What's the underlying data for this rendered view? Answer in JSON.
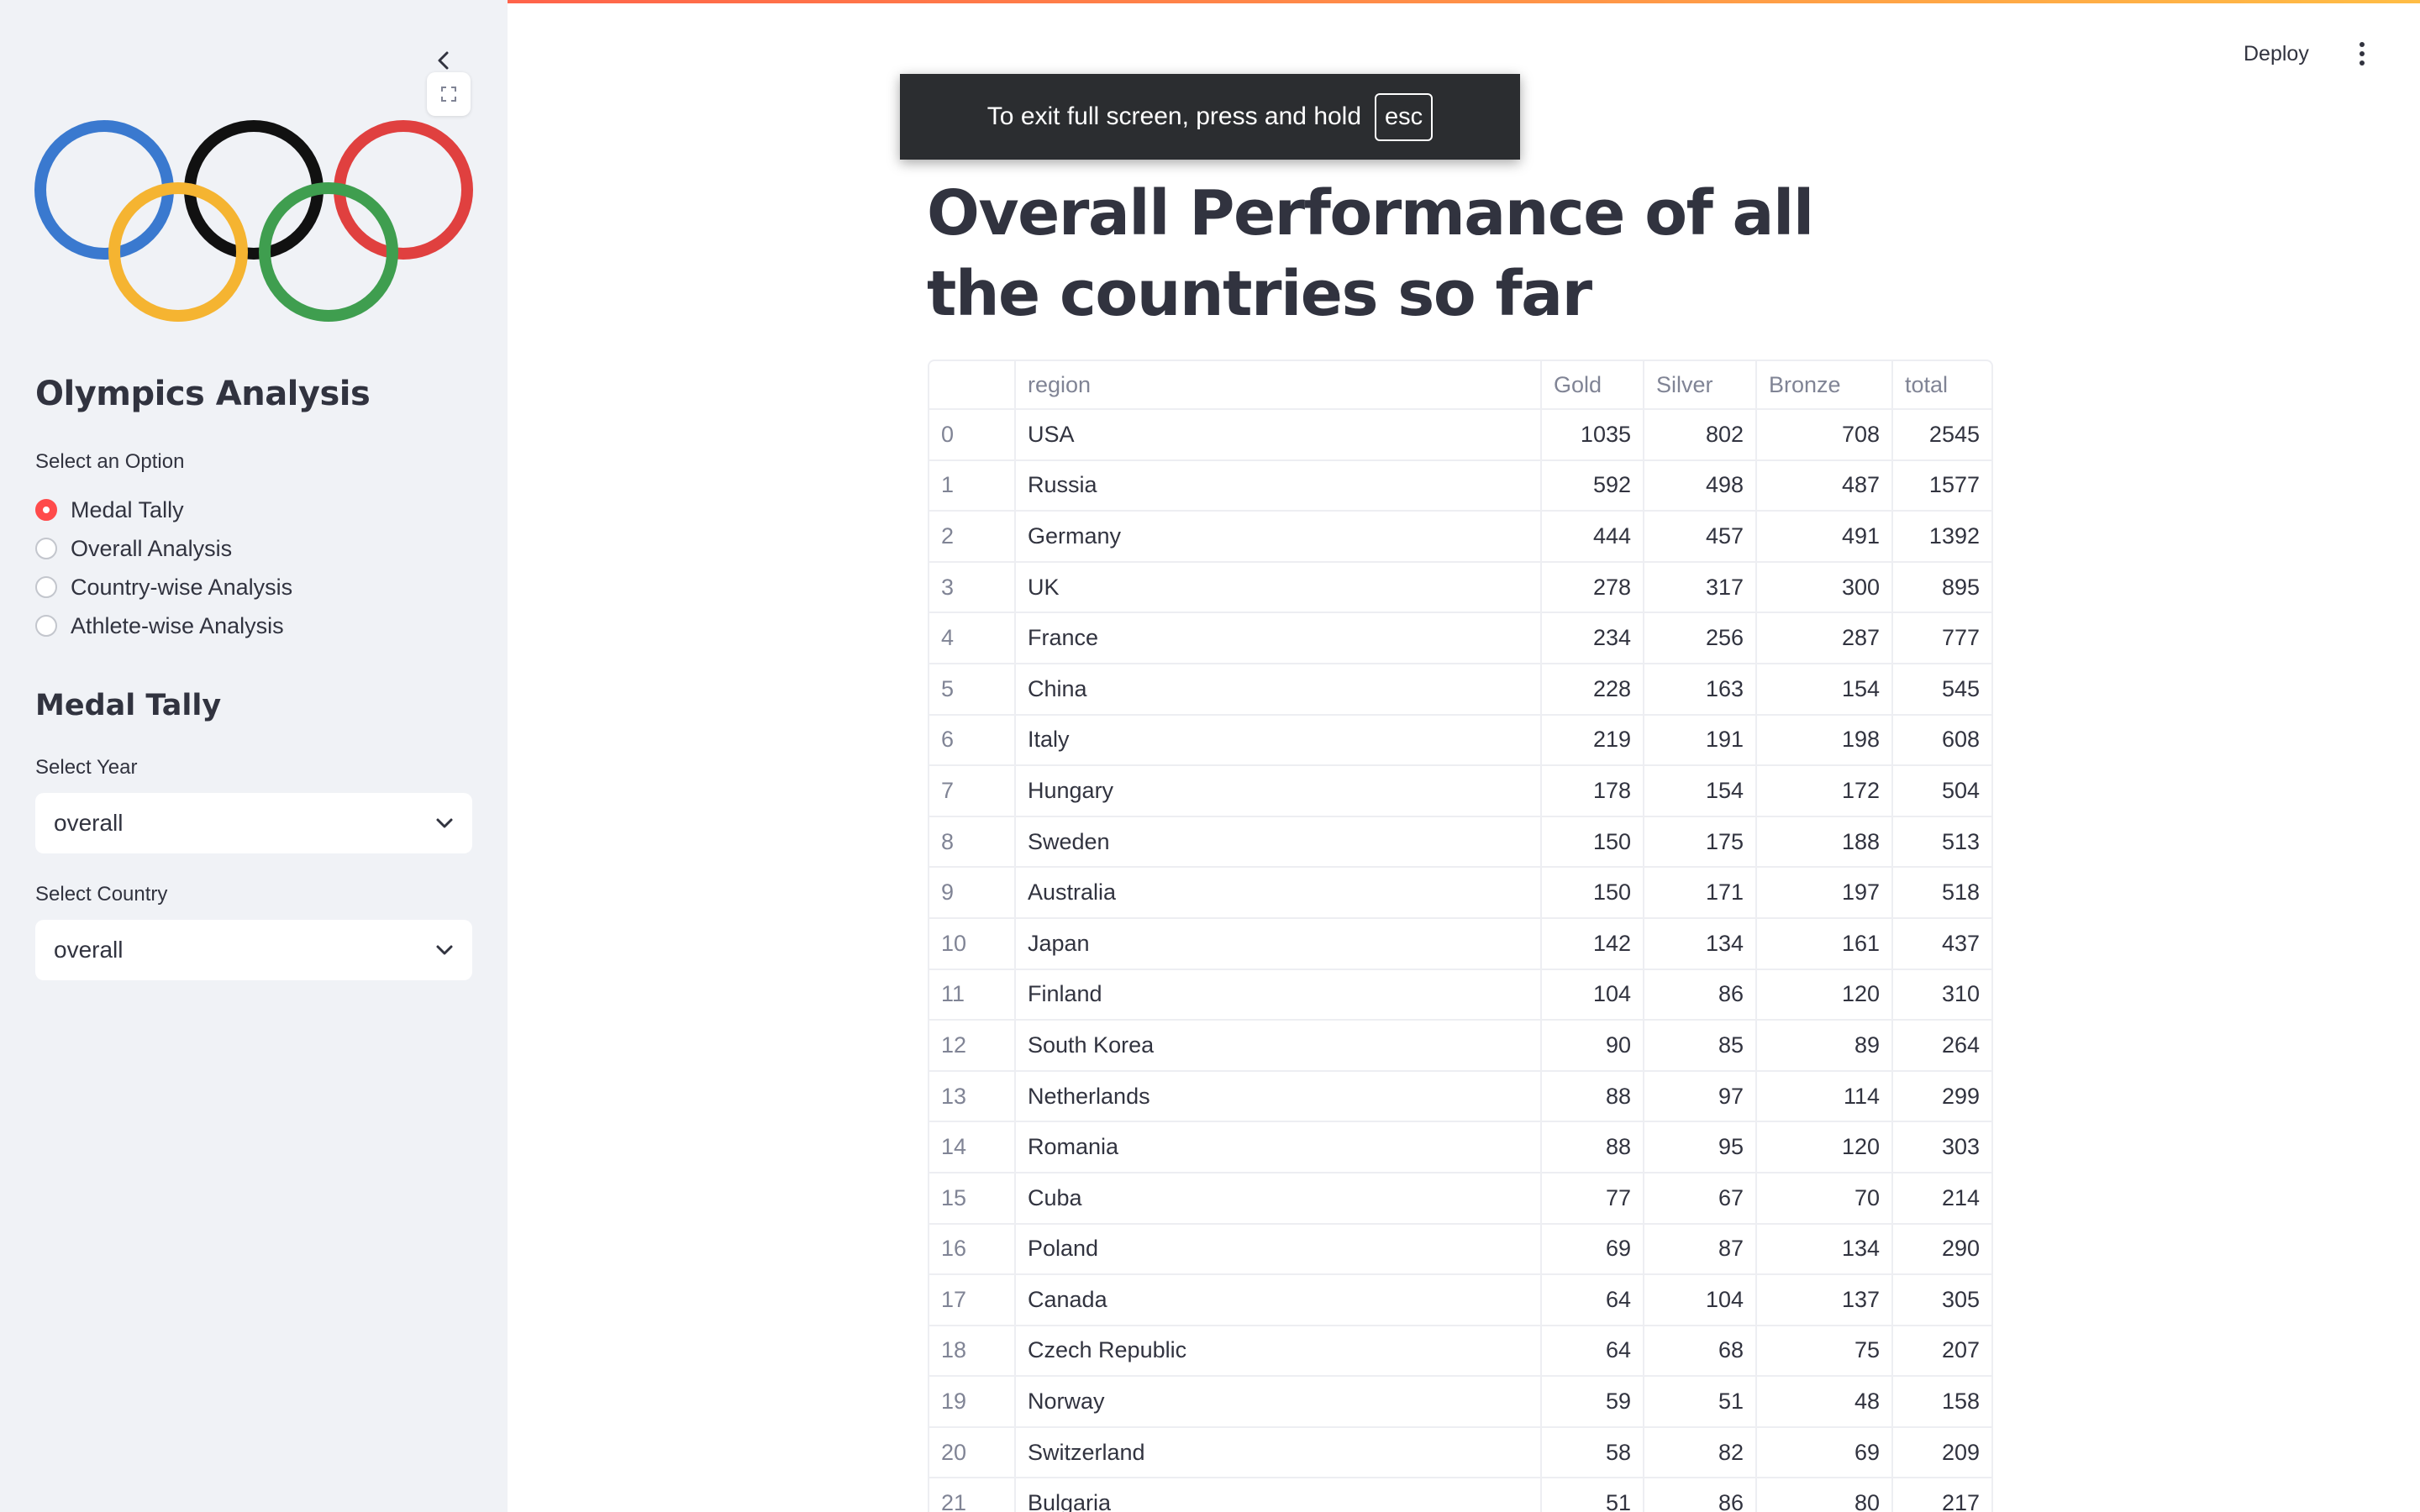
{
  "sidebar": {
    "app_title": "Olympics Analysis",
    "option_label": "Select an Option",
    "options": [
      {
        "label": "Medal Tally",
        "selected": true
      },
      {
        "label": "Overall Analysis",
        "selected": false
      },
      {
        "label": "Country-wise Analysis",
        "selected": false
      },
      {
        "label": "Athlete-wise Analysis",
        "selected": false
      }
    ],
    "section_title": "Medal Tally",
    "year_label": "Select Year",
    "year_value": "overall",
    "country_label": "Select Country",
    "country_value": "overall",
    "ring_colors": [
      "#3a79cf",
      "#111111",
      "#e0403f",
      "#f5b431",
      "#3f9e4f"
    ]
  },
  "toolbar": {
    "deploy_label": "Deploy"
  },
  "fullscreen_toast": {
    "message": "To exit full screen, press and hold",
    "key": "esc"
  },
  "main": {
    "title": "Overall Performance of all the countries so far",
    "table": {
      "columns": [
        "",
        "region",
        "Gold",
        "Silver",
        "Bronze",
        "total"
      ],
      "rows": [
        [
          "0",
          "USA",
          "1035",
          "802",
          "708",
          "2545"
        ],
        [
          "1",
          "Russia",
          "592",
          "498",
          "487",
          "1577"
        ],
        [
          "2",
          "Germany",
          "444",
          "457",
          "491",
          "1392"
        ],
        [
          "3",
          "UK",
          "278",
          "317",
          "300",
          "895"
        ],
        [
          "4",
          "France",
          "234",
          "256",
          "287",
          "777"
        ],
        [
          "5",
          "China",
          "228",
          "163",
          "154",
          "545"
        ],
        [
          "6",
          "Italy",
          "219",
          "191",
          "198",
          "608"
        ],
        [
          "7",
          "Hungary",
          "178",
          "154",
          "172",
          "504"
        ],
        [
          "8",
          "Sweden",
          "150",
          "175",
          "188",
          "513"
        ],
        [
          "9",
          "Australia",
          "150",
          "171",
          "197",
          "518"
        ],
        [
          "10",
          "Japan",
          "142",
          "134",
          "161",
          "437"
        ],
        [
          "11",
          "Finland",
          "104",
          "86",
          "120",
          "310"
        ],
        [
          "12",
          "South Korea",
          "90",
          "85",
          "89",
          "264"
        ],
        [
          "13",
          "Netherlands",
          "88",
          "97",
          "114",
          "299"
        ],
        [
          "14",
          "Romania",
          "88",
          "95",
          "120",
          "303"
        ],
        [
          "15",
          "Cuba",
          "77",
          "67",
          "70",
          "214"
        ],
        [
          "16",
          "Poland",
          "69",
          "87",
          "134",
          "290"
        ],
        [
          "17",
          "Canada",
          "64",
          "104",
          "137",
          "305"
        ],
        [
          "18",
          "Czech Republic",
          "64",
          "68",
          "75",
          "207"
        ],
        [
          "19",
          "Norway",
          "59",
          "51",
          "48",
          "158"
        ],
        [
          "20",
          "Switzerland",
          "58",
          "82",
          "69",
          "209"
        ],
        [
          "21",
          "Bulgaria",
          "51",
          "86",
          "80",
          "217"
        ]
      ]
    }
  }
}
